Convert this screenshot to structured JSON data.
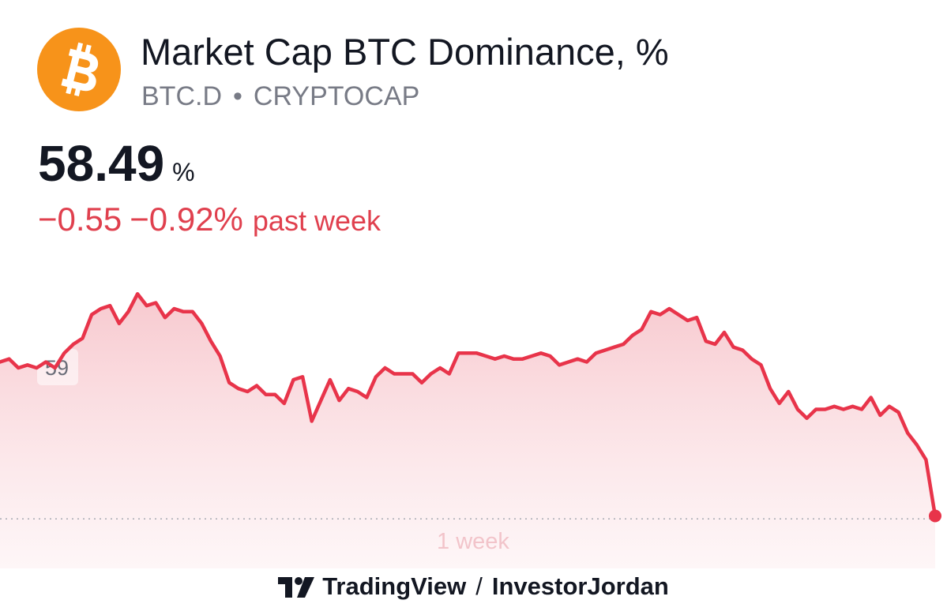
{
  "header": {
    "logo_icon": "bitcoin-icon",
    "logo_color": "#F7931A",
    "title": "Market Cap BTC Dominance, %",
    "symbol": "BTC.D",
    "separator": "•",
    "exchange": "CRYPTOCAP"
  },
  "quote": {
    "value": "58.49",
    "unit": "%",
    "change_abs": "−0.55",
    "change_pct": "−0.92%",
    "change_period": "past week",
    "change_color": "#E0404E"
  },
  "footer": {
    "brand_icon": "tradingview-logo-icon",
    "brand": "TradingView",
    "separator": "/",
    "author": "InvestorJordan"
  },
  "chart_data": {
    "type": "area",
    "line_color": "#E8344A",
    "fill_color": "#FBE1E4",
    "ytick_label": "59",
    "ytick_value": 59.0,
    "ylim": [
      58.48,
      59.32
    ],
    "baseline_value": 58.49,
    "xlabel": "1 week",
    "grid": false,
    "series": [
      {
        "values": [
          59.02,
          59.03,
          59.0,
          59.01,
          59.0,
          59.02,
          59.0,
          59.05,
          59.08,
          59.1,
          59.18,
          59.2,
          59.21,
          59.15,
          59.19,
          59.25,
          59.21,
          59.22,
          59.17,
          59.2,
          59.19,
          59.19,
          59.15,
          59.09,
          59.04,
          58.95,
          58.93,
          58.92,
          58.94,
          58.91,
          58.91,
          58.88,
          58.96,
          58.97,
          58.82,
          58.89,
          58.96,
          58.89,
          58.93,
          58.92,
          58.9,
          58.97,
          59.0,
          58.98,
          58.98,
          58.98,
          58.95,
          58.98,
          59.0,
          58.98,
          59.05,
          59.05,
          59.05,
          59.04,
          59.03,
          59.04,
          59.03,
          59.03,
          59.04,
          59.05,
          59.04,
          59.01,
          59.02,
          59.03,
          59.02,
          59.05,
          59.06,
          59.07,
          59.08,
          59.11,
          59.13,
          59.19,
          59.18,
          59.2,
          59.18,
          59.16,
          59.17,
          59.09,
          59.08,
          59.12,
          59.07,
          59.06,
          59.03,
          59.01,
          58.93,
          58.88,
          58.92,
          58.86,
          58.83,
          58.86,
          58.86,
          58.87,
          58.86,
          58.87,
          58.86,
          58.9,
          58.84,
          58.87,
          58.85,
          58.78,
          58.74,
          58.69,
          58.5
        ]
      }
    ]
  }
}
